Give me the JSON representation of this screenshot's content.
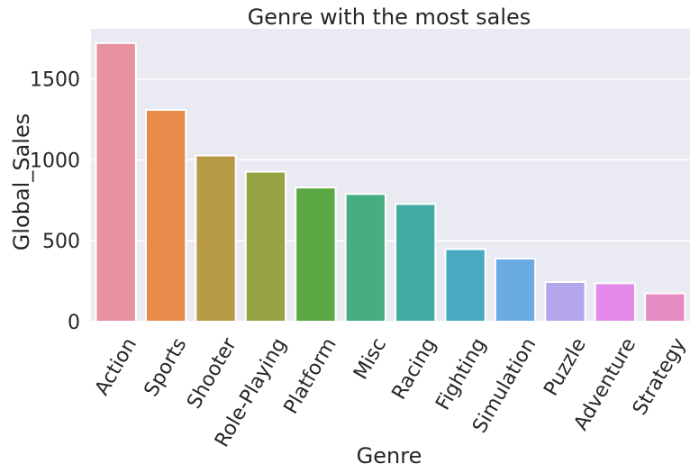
{
  "chart_data": {
    "type": "bar",
    "title": "Genre with the most sales",
    "xlabel": "Genre",
    "ylabel": "Global_Sales",
    "categories": [
      "Action",
      "Sports",
      "Shooter",
      "Role-Playing",
      "Platform",
      "Misc",
      "Racing",
      "Fighting",
      "Simulation",
      "Puzzle",
      "Adventure",
      "Strategy"
    ],
    "values": [
      1722,
      1309,
      1027,
      927,
      829,
      789,
      727,
      448,
      390,
      245,
      237,
      175
    ],
    "ylim": [
      0,
      1810
    ],
    "yticks": [
      0,
      500,
      1000,
      1500
    ],
    "colors": [
      "#e8919f",
      "#e68b4a",
      "#b89a45",
      "#97a242",
      "#5aa844",
      "#46ae80",
      "#42aba3",
      "#48a9c1",
      "#6aabe3",
      "#b5a6ec",
      "#e38aea",
      "#e68cc4"
    ],
    "grid": true,
    "background": "#eaeaf2",
    "legend": "none"
  }
}
